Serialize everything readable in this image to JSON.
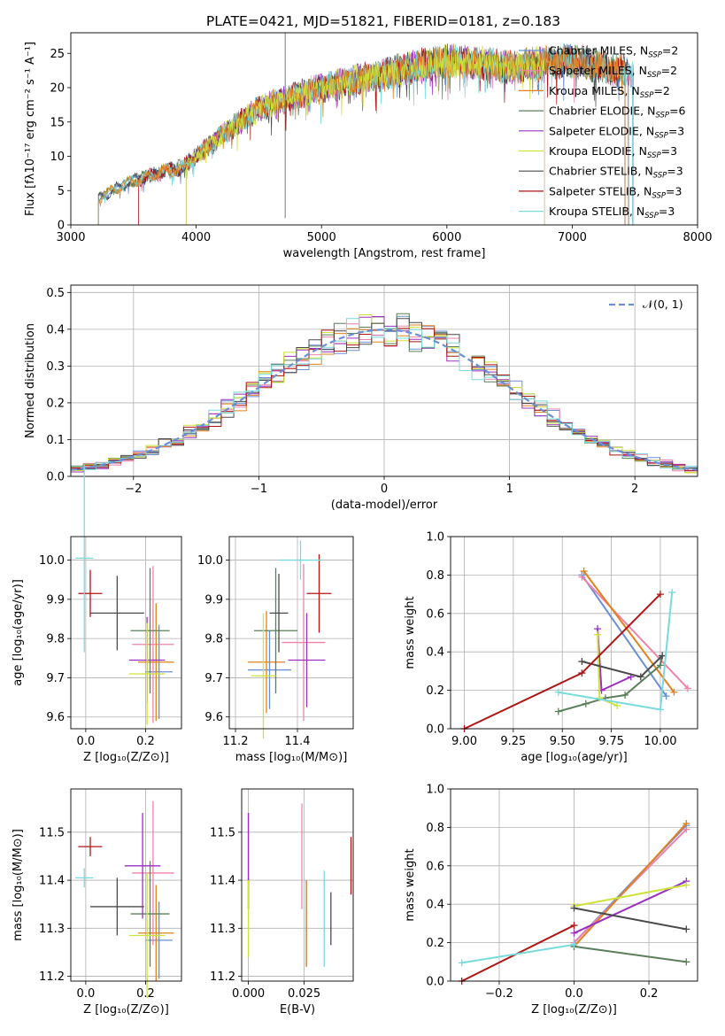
{
  "figure": {
    "title": "PLATE=0421, MJD=51821, FIBERID=0181, z=0.183"
  },
  "models": [
    {
      "name": "Chabrier MILES",
      "nssp": "2",
      "color": "#6b8fd6"
    },
    {
      "name": "Salpeter MILES",
      "nssp": "2",
      "color": "#ee82aa"
    },
    {
      "name": "Kroupa MILES",
      "nssp": "2",
      "color": "#e0821e"
    },
    {
      "name": "Chabrier ELODIE",
      "nssp": "6",
      "color": "#5a7f5a"
    },
    {
      "name": "Salpeter ELODIE",
      "nssp": "3",
      "color": "#9a30c0"
    },
    {
      "name": "Kroupa ELODIE",
      "nssp": "3",
      "color": "#cde23a"
    },
    {
      "name": "Chabrier STELIB",
      "nssp": "3",
      "color": "#4a4a4a"
    },
    {
      "name": "Salpeter STELIB",
      "nssp": "3",
      "color": "#b01515"
    },
    {
      "name": "Kroupa STELIB",
      "nssp": "3",
      "color": "#78dada"
    }
  ],
  "legend_nssp_label": "N",
  "legend_nssp_sub": "SSP",
  "chart_data": [
    {
      "id": "spectrum",
      "type": "line",
      "xlabel": "wavelength [Angstrom, rest frame]",
      "ylabel": "Flux [fλ10⁻¹⁷ erg cm⁻² s⁻¹ A⁻¹]",
      "xlim": [
        3000,
        8000
      ],
      "ylim": [
        0,
        28
      ],
      "xticks": [
        "3000",
        "4000",
        "5000",
        "6000",
        "7000",
        "8000"
      ],
      "yticks": [
        "0",
        "5",
        "10",
        "15",
        "20",
        "25"
      ],
      "legend": "top-right",
      "continuum": {
        "x": [
          3220,
          3500,
          3900,
          4200,
          4500,
          5000,
          5500,
          6000,
          6500,
          7000,
          7500,
          7800
        ],
        "y": [
          4,
          6.5,
          8.5,
          13,
          17,
          20,
          22,
          24,
          23,
          24,
          22,
          23
        ]
      },
      "series_start": [
        3220,
        3540,
        3220,
        3220,
        3920,
        3920,
        3220,
        3540,
        3220
      ],
      "series_end": [
        7480,
        7490,
        7420,
        7420,
        6780,
        6780,
        7450,
        7420,
        7480
      ],
      "spike": {
        "x": 4710,
        "ymin": 1,
        "ymax": 28
      }
    },
    {
      "id": "residuals",
      "type": "histogram",
      "xlabel": "(data-model)/error",
      "ylabel": "Normed distribution",
      "xlim": [
        -2.5,
        2.5
      ],
      "ylim": [
        0,
        0.52
      ],
      "xticks": [
        "−2",
        "−1",
        "0",
        "1",
        "2"
      ],
      "yticks": [
        "0.0",
        "0.1",
        "0.2",
        "0.3",
        "0.4",
        "0.5"
      ],
      "bin_width": 0.1,
      "reference_label": "𝒩(0, 1)",
      "reference_color": "#6b8fd6",
      "legend": "top-right"
    },
    {
      "id": "age-vs-Z",
      "type": "errorbar",
      "xlabel": "Z [log₁₀(Z/Z⊙)]",
      "ylabel": "age  [log₁₀(age/yr)]",
      "xlim": [
        -0.05,
        0.32
      ],
      "ylim": [
        9.57,
        10.06
      ],
      "xticks": [
        "0.0",
        "0.2"
      ],
      "yticks": [
        "9.6",
        "9.7",
        "9.8",
        "9.9",
        "10.0"
      ],
      "points": [
        {
          "x": 0.245,
          "xerr": 0.045,
          "y": 9.715,
          "yerr": 0.12
        },
        {
          "x": 0.225,
          "xerr": 0.07,
          "y": 9.785,
          "yerr": 0.2
        },
        {
          "x": 0.235,
          "xerr": 0.06,
          "y": 9.74,
          "yerr": 0.15
        },
        {
          "x": 0.215,
          "xerr": 0.065,
          "y": 9.82,
          "yerr": 0.16
        },
        {
          "x": 0.205,
          "xerr": 0.06,
          "y": 9.745,
          "yerr": 0.11
        },
        {
          "x": 0.205,
          "xerr": 0.06,
          "y": 9.71,
          "yerr": 0.13
        },
        {
          "x": 0.105,
          "xerr": 0.09,
          "y": 9.865,
          "yerr": 0.095
        },
        {
          "x": 0.015,
          "xerr": 0.04,
          "y": 9.915,
          "yerr": 0.06
        },
        {
          "x": -0.005,
          "xerr": 0.03,
          "y": 10.005,
          "yerr": 0.24
        }
      ]
    },
    {
      "id": "age-vs-mass",
      "type": "errorbar",
      "xlabel": "mass [log₁₀(M/M⊙)]",
      "ylabel": "",
      "xlim": [
        11.18,
        11.58
      ],
      "ylim": [
        9.57,
        10.06
      ],
      "xticks": [
        "11.2",
        "11.4"
      ],
      "yticks": [
        "9.6",
        "9.7",
        "9.8",
        "9.9",
        "10.0"
      ],
      "points": [
        {
          "x": 11.31,
          "xerr": 0.07,
          "y": 9.72,
          "yerr": 0.1
        },
        {
          "x": 11.42,
          "xerr": 0.07,
          "y": 9.79,
          "yerr": 0.2
        },
        {
          "x": 11.3,
          "xerr": 0.06,
          "y": 9.74,
          "yerr": 0.13
        },
        {
          "x": 11.33,
          "xerr": 0.07,
          "y": 9.82,
          "yerr": 0.16
        },
        {
          "x": 11.43,
          "xerr": 0.06,
          "y": 9.745,
          "yerr": 0.12
        },
        {
          "x": 11.29,
          "xerr": 0.04,
          "y": 9.705,
          "yerr": 0.16
        },
        {
          "x": 11.34,
          "xerr": 0.03,
          "y": 9.865,
          "yerr": 0.1
        },
        {
          "x": 11.47,
          "xerr": 0.04,
          "y": 9.915,
          "yerr": 0.1
        },
        {
          "x": 11.41,
          "xerr": 0.07,
          "y": 10.0,
          "yerr": 0.05
        }
      ]
    },
    {
      "id": "weight-vs-age",
      "type": "line",
      "xlabel": "age  [log₁₀(age/yr)]",
      "ylabel": "mass weight",
      "xlim": [
        8.93,
        10.19
      ],
      "ylim": [
        0,
        1.0
      ],
      "xticks": [
        "9.00",
        "9.25",
        "9.50",
        "9.75",
        "10.00"
      ],
      "yticks": [
        "0.0",
        "0.2",
        "0.4",
        "0.6",
        "0.8",
        "1.0"
      ],
      "series": [
        {
          "x": [
            9.6,
            10.03
          ],
          "y": [
            0.8,
            0.17
          ]
        },
        {
          "x": [
            9.6,
            10.14
          ],
          "y": [
            0.79,
            0.21
          ]
        },
        {
          "x": [
            9.61,
            10.07
          ],
          "y": [
            0.82,
            0.19
          ]
        },
        {
          "x": [
            9.48,
            9.62,
            9.72,
            9.82,
            10.0,
            10.01
          ],
          "y": [
            0.09,
            0.13,
            0.16,
            0.175,
            0.33,
            0.38
          ]
        },
        {
          "x": [
            9.68,
            9.7,
            9.85
          ],
          "y": [
            0.52,
            0.2,
            0.27
          ]
        },
        {
          "x": [
            9.68,
            9.69,
            9.78
          ],
          "y": [
            0.49,
            0.16,
            0.12
          ]
        },
        {
          "x": [
            9.6,
            9.9,
            10.01
          ],
          "y": [
            0.35,
            0.27,
            0.38
          ]
        },
        {
          "x": [
            9.0,
            9.6,
            10.0
          ],
          "y": [
            0.0,
            0.29,
            0.7
          ]
        },
        {
          "x": [
            9.48,
            10.0,
            10.06
          ],
          "y": [
            0.19,
            0.1,
            0.71
          ]
        }
      ]
    },
    {
      "id": "mass-vs-Z",
      "type": "errorbar",
      "xlabel": "Z [log₁₀(Z/Z⊙)]",
      "ylabel": "mass [log₁₀(M/M⊙)]",
      "xlim": [
        -0.05,
        0.32
      ],
      "ylim": [
        11.19,
        11.59
      ],
      "xticks": [
        "0.0",
        "0.2"
      ],
      "yticks": [
        "11.2",
        "11.3",
        "11.4",
        "11.5"
      ],
      "points": [
        {
          "x": 0.245,
          "xerr": 0.045,
          "y": 11.275,
          "yerr": 0.08
        },
        {
          "x": 0.225,
          "xerr": 0.07,
          "y": 11.415,
          "yerr": 0.15
        },
        {
          "x": 0.235,
          "xerr": 0.06,
          "y": 11.29,
          "yerr": 0.1
        },
        {
          "x": 0.215,
          "xerr": 0.065,
          "y": 11.33,
          "yerr": 0.11
        },
        {
          "x": 0.19,
          "xerr": 0.06,
          "y": 11.43,
          "yerr": 0.11
        },
        {
          "x": 0.205,
          "xerr": 0.06,
          "y": 11.285,
          "yerr": 0.13
        },
        {
          "x": 0.105,
          "xerr": 0.09,
          "y": 11.345,
          "yerr": 0.06
        },
        {
          "x": 0.015,
          "xerr": 0.04,
          "y": 11.47,
          "yerr": 0.02
        },
        {
          "x": -0.005,
          "xerr": 0.03,
          "y": 11.405,
          "yerr": 0.02
        }
      ]
    },
    {
      "id": "mass-vs-EBV",
      "type": "errorbar",
      "xlabel": "E(B-V)",
      "ylabel": "",
      "xlim": [
        -0.003,
        0.047
      ],
      "ylim": [
        11.19,
        11.59
      ],
      "xticks": [
        "0.000",
        "0.025"
      ],
      "yticks": [
        "11.2",
        "11.3",
        "11.4",
        "11.5"
      ],
      "points": [
        {
          "x": 0.026,
          "xerr": 0,
          "y": 11.31,
          "yerr": 0.09
        },
        {
          "x": 0.024,
          "xerr": 0,
          "y": 11.45,
          "yerr": 0.11
        },
        {
          "x": 0.026,
          "xerr": 0,
          "y": 11.31,
          "yerr": 0.09
        },
        {
          "x": 0.0,
          "xerr": 0,
          "y": 11.44,
          "yerr": 0.1
        },
        {
          "x": 0.0,
          "xerr": 0,
          "y": 11.44,
          "yerr": 0.1
        },
        {
          "x": 0.0,
          "xerr": 0,
          "y": 11.32,
          "yerr": 0.08
        },
        {
          "x": 0.037,
          "xerr": 0,
          "y": 11.32,
          "yerr": 0.055
        },
        {
          "x": 0.046,
          "xerr": 0,
          "y": 11.43,
          "yerr": 0.06
        },
        {
          "x": 0.034,
          "xerr": 0,
          "y": 11.32,
          "yerr": 0.1
        }
      ]
    },
    {
      "id": "weight-vs-Z",
      "type": "line",
      "xlabel": "Z [log₁₀(Z/Z⊙)]",
      "ylabel": "mass weight",
      "xlim": [
        -0.33,
        0.33
      ],
      "ylim": [
        0,
        1.0
      ],
      "xticks": [
        "−0.2",
        "0.0",
        "0.2"
      ],
      "yticks": [
        "0.0",
        "0.2",
        "0.4",
        "0.6",
        "0.8",
        "1.0"
      ],
      "series": [
        {
          "x": [
            0.0,
            0.3
          ],
          "y": [
            0.2,
            0.81
          ]
        },
        {
          "x": [
            0.0,
            0.3
          ],
          "y": [
            0.2,
            0.79
          ]
        },
        {
          "x": [
            0.0,
            0.3
          ],
          "y": [
            0.18,
            0.82
          ]
        },
        {
          "x": [
            0.0,
            0.3
          ],
          "y": [
            0.18,
            0.1
          ]
        },
        {
          "x": [
            0.0,
            0.3
          ],
          "y": [
            0.25,
            0.52
          ]
        },
        {
          "x": [
            0.0,
            0.3
          ],
          "y": [
            0.39,
            0.5
          ]
        },
        {
          "x": [
            0.0,
            0.3
          ],
          "y": [
            0.38,
            0.27
          ]
        },
        {
          "x": [
            -0.3,
            0.0
          ],
          "y": [
            0.0,
            0.29
          ]
        },
        {
          "x": [
            -0.3,
            0.0
          ],
          "y": [
            0.095,
            0.19
          ]
        }
      ]
    }
  ]
}
